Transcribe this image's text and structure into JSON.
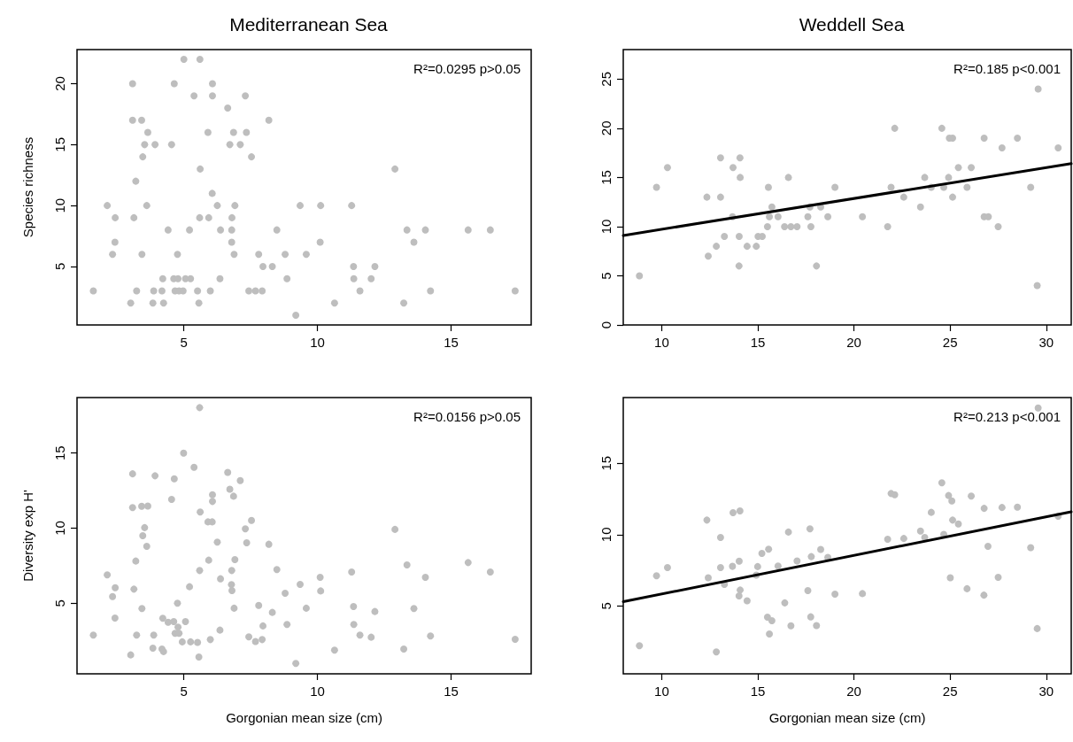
{
  "chart_data": [
    {
      "type": "scatter",
      "title": "Mediterranean Sea",
      "ylabel": "Species richness",
      "annotations": [
        "R²=0.0295 p>0.05"
      ],
      "xlim": [
        1,
        18
      ],
      "xticks": [
        5,
        10,
        15
      ],
      "ylim": [
        0.2,
        22.8
      ],
      "yticks": [
        5,
        10,
        15,
        20
      ],
      "series": [
        {
          "marker": "circle",
          "color": "#bebebe",
          "x": [
            5.0,
            5.6,
            3.08,
            4.64,
            6.07,
            5.38,
            6.07,
            7.3,
            6.64,
            3.08,
            3.42,
            8.18,
            3.65,
            5.9,
            6.86,
            7.34,
            3.53,
            3.92,
            4.54,
            6.72,
            7.11,
            3.46,
            7.53,
            5.61,
            12.9,
            3.2,
            6.06,
            2.13,
            3.61,
            6.25,
            6.91,
            9.35,
            10.12,
            11.28,
            2.43,
            3.13,
            5.59,
            5.93,
            6.8,
            4.41,
            5.21,
            6.37,
            6.79,
            8.48,
            13.35,
            14.04,
            15.64,
            16.47,
            2.42,
            6.79,
            10.1,
            13.61,
            2.33,
            3.43,
            4.76,
            6.88,
            7.8,
            8.79,
            9.58,
            7.96,
            8.31,
            11.35,
            12.15,
            4.21,
            4.62,
            4.78,
            5.06,
            5.25,
            6.35,
            8.86,
            11.36,
            12.01,
            1.61,
            3.23,
            3.87,
            4.18,
            4.67,
            4.82,
            4.97,
            5.51,
            5.99,
            7.43,
            7.68,
            7.93,
            11.59,
            14.23,
            17.4,
            3.01,
            3.84,
            4.24,
            5.56,
            10.64,
            13.23,
            9.19
          ],
          "values": [
            22,
            22,
            20,
            20,
            20,
            19,
            19,
            19,
            18,
            17,
            17,
            17,
            16,
            16,
            16,
            16,
            15,
            15,
            15,
            15,
            15,
            14,
            14,
            13,
            13,
            12,
            11,
            10,
            10,
            10,
            10,
            10,
            10,
            10,
            9,
            9,
            9,
            9,
            9,
            8,
            8,
            8,
            8,
            8,
            8,
            8,
            8,
            8,
            7,
            7,
            7,
            7,
            6,
            6,
            6,
            6,
            6,
            6,
            6,
            5,
            5,
            5,
            5,
            4,
            4,
            4,
            4,
            4,
            4,
            4,
            4,
            4,
            3,
            3,
            3,
            3,
            3,
            3,
            3,
            3,
            3,
            3,
            3,
            3,
            3,
            3,
            3,
            2,
            2,
            2,
            2,
            2,
            2,
            1
          ]
        }
      ]
    },
    {
      "type": "scatter",
      "title": "Weddell Sea",
      "annotations": [
        "R²=0.185 p<0.001"
      ],
      "xlim": [
        8,
        31.3
      ],
      "xticks": [
        10,
        15,
        20,
        25,
        30
      ],
      "ylim": [
        0,
        28
      ],
      "yticks": [
        0,
        5,
        10,
        15,
        20,
        25
      ],
      "series": [
        {
          "marker": "circle",
          "color": "#bebebe",
          "x": [
            8.84,
            9.73,
            10.3,
            12.35,
            12.42,
            12.84,
            13.06,
            13.06,
            13.26,
            13.68,
            13.71,
            14.07,
            14.08,
            14.03,
            14.02,
            14.44,
            14.92,
            15.01,
            15.23,
            15.5,
            15.55,
            15.6,
            15.73,
            16.05,
            16.39,
            16.59,
            16.72,
            17.04,
            17.6,
            17.71,
            17.76,
            18.05,
            18.27,
            18.64,
            19.01,
            20.44,
            21.75,
            21.93,
            22.12,
            22.59,
            23.46,
            23.68,
            24.02,
            24.57,
            24.67,
            24.92,
            24.96,
            25.13,
            25.13,
            25.43,
            25.88,
            26.1,
            26.77,
            26.77,
            26.99,
            27.5,
            27.7,
            28.5,
            29.19,
            29.58,
            29.53,
            30.62
          ],
          "values": [
            5,
            14,
            16,
            13,
            7,
            8,
            17,
            13,
            9,
            11,
            16,
            17,
            15,
            9,
            6,
            8,
            8,
            9,
            9,
            10,
            14,
            11,
            12,
            11,
            10,
            15,
            10,
            10,
            11,
            12,
            10,
            6,
            12,
            11,
            14,
            11,
            10,
            14,
            20,
            13,
            12,
            15,
            14,
            20,
            14,
            15,
            19,
            19,
            13,
            16,
            14,
            16,
            19,
            11,
            11,
            10,
            18,
            19,
            14,
            24,
            4,
            18
          ]
        },
        {
          "type": "line",
          "marker": "none",
          "color": "#000000",
          "x": [
            8,
            31.3
          ],
          "values": [
            9.1,
            16.4
          ]
        }
      ]
    },
    {
      "type": "scatter",
      "xlabel": "Gorgonian mean size (cm)",
      "ylabel": "Diversity exp H'",
      "annotations": [
        "R²=0.0156 p>0.05"
      ],
      "xlim": [
        1,
        18
      ],
      "xticks": [
        5,
        10,
        15
      ],
      "ylim": [
        0.3,
        18.7
      ],
      "yticks": [
        5,
        10,
        15
      ],
      "series": [
        {
          "marker": "circle",
          "color": "#bebebe",
          "x": [
            5.59,
            4.99,
            5.38,
            3.08,
            6.64,
            3.92,
            4.64,
            7.11,
            6.72,
            6.07,
            6.86,
            4.54,
            6.07,
            3.08,
            3.42,
            3.65,
            5.61,
            5.9,
            6.06,
            7.53,
            3.53,
            7.3,
            12.9,
            3.46,
            6.25,
            7.35,
            3.61,
            8.18,
            3.2,
            5.93,
            6.91,
            15.64,
            13.35,
            2.13,
            5.59,
            6.79,
            8.48,
            11.28,
            16.47,
            6.37,
            10.1,
            14.04,
            2.43,
            3.13,
            5.21,
            6.78,
            6.8,
            9.35,
            10.12,
            8.79,
            2.33,
            4.76,
            3.43,
            6.88,
            7.8,
            9.58,
            11.35,
            13.61,
            8.31,
            12.15,
            2.42,
            4.21,
            4.41,
            4.62,
            5.06,
            4.78,
            8.86,
            11.36,
            7.96,
            6.35,
            1.61,
            3.23,
            3.87,
            4.67,
            4.82,
            11.59,
            14.23,
            7.43,
            12.01,
            4.94,
            5.25,
            5.51,
            5.99,
            7.68,
            7.93,
            17.4,
            3.84,
            4.18,
            4.24,
            10.64,
            13.23,
            3.01,
            5.56,
            9.19
          ],
          "values": [
            18.03,
            15.0,
            14.06,
            13.62,
            13.72,
            13.49,
            13.29,
            13.17,
            12.6,
            12.23,
            12.13,
            11.92,
            11.78,
            11.37,
            11.46,
            11.48,
            11.08,
            10.42,
            10.42,
            10.52,
            10.04,
            9.96,
            9.92,
            9.5,
            9.07,
            9.03,
            8.79,
            8.93,
            7.81,
            7.87,
            7.91,
            7.71,
            7.55,
            6.89,
            7.18,
            7.18,
            7.24,
            7.08,
            7.08,
            6.63,
            6.73,
            6.73,
            6.04,
            5.94,
            6.1,
            6.24,
            5.84,
            6.26,
            5.82,
            5.67,
            5.45,
            5.0,
            4.65,
            4.67,
            4.86,
            4.67,
            4.78,
            4.65,
            4.39,
            4.45,
            4.02,
            4.0,
            3.74,
            3.78,
            3.78,
            3.41,
            3.59,
            3.59,
            3.49,
            3.21,
            2.88,
            2.88,
            2.88,
            3.0,
            3.0,
            2.88,
            2.82,
            2.76,
            2.74,
            2.43,
            2.43,
            2.39,
            2.58,
            2.45,
            2.58,
            2.6,
            2.01,
            1.95,
            1.78,
            1.88,
            1.95,
            1.56,
            1.42,
            0.99
          ]
        }
      ]
    },
    {
      "type": "scatter",
      "xlabel": "Gorgonian mean size (cm)",
      "annotations": [
        "R²=0.213 p<0.001"
      ],
      "xlim": [
        8,
        31.3
      ],
      "xticks": [
        10,
        15,
        20,
        25,
        30
      ],
      "ylim": [
        0.25,
        19.6
      ],
      "yticks": [
        5,
        10,
        15
      ],
      "series": [
        {
          "marker": "circle",
          "color": "#bebebe",
          "x": [
            8.84,
            9.73,
            10.3,
            12.35,
            12.42,
            12.84,
            13.06,
            13.06,
            13.26,
            13.68,
            13.71,
            14.07,
            14.03,
            14.08,
            14.02,
            14.44,
            14.99,
            14.92,
            15.21,
            15.56,
            15.5,
            15.73,
            15.6,
            16.05,
            16.4,
            16.59,
            16.72,
            17.04,
            17.6,
            17.71,
            17.78,
            17.75,
            18.05,
            18.27,
            18.64,
            19.01,
            20.44,
            21.75,
            21.93,
            22.12,
            22.59,
            23.46,
            23.68,
            24.02,
            24.57,
            24.67,
            24.92,
            25.09,
            25.01,
            25.13,
            25.43,
            25.88,
            26.1,
            26.77,
            26.76,
            26.97,
            27.5,
            27.7,
            28.5,
            29.19,
            29.58,
            29.53,
            30.62
          ],
          "values": [
            2.22,
            7.12,
            7.69,
            11.02,
            6.98,
            1.79,
            9.8,
            7.69,
            6.51,
            7.78,
            11.54,
            11.66,
            8.14,
            6.12,
            5.71,
            5.37,
            7.76,
            7.17,
            8.68,
            8.98,
            4.22,
            3.97,
            3.04,
            7.8,
            5.22,
            10.18,
            3.61,
            8.16,
            6.08,
            10.41,
            8.46,
            4.24,
            3.63,
            8.96,
            8.41,
            5.83,
            5.87,
            9.68,
            12.88,
            12.79,
            9.73,
            10.25,
            9.8,
            11.56,
            13.63,
            10.02,
            12.74,
            12.36,
            6.98,
            11.02,
            10.75,
            6.21,
            12.7,
            11.84,
            5.76,
            9.18,
            7.01,
            11.9,
            11.93,
            9.09,
            18.87,
            3.42,
            11.29
          ]
        },
        {
          "type": "line",
          "marker": "none",
          "color": "#000000",
          "x": [
            8,
            31.3
          ],
          "values": [
            5.3,
            11.6
          ]
        }
      ]
    }
  ]
}
